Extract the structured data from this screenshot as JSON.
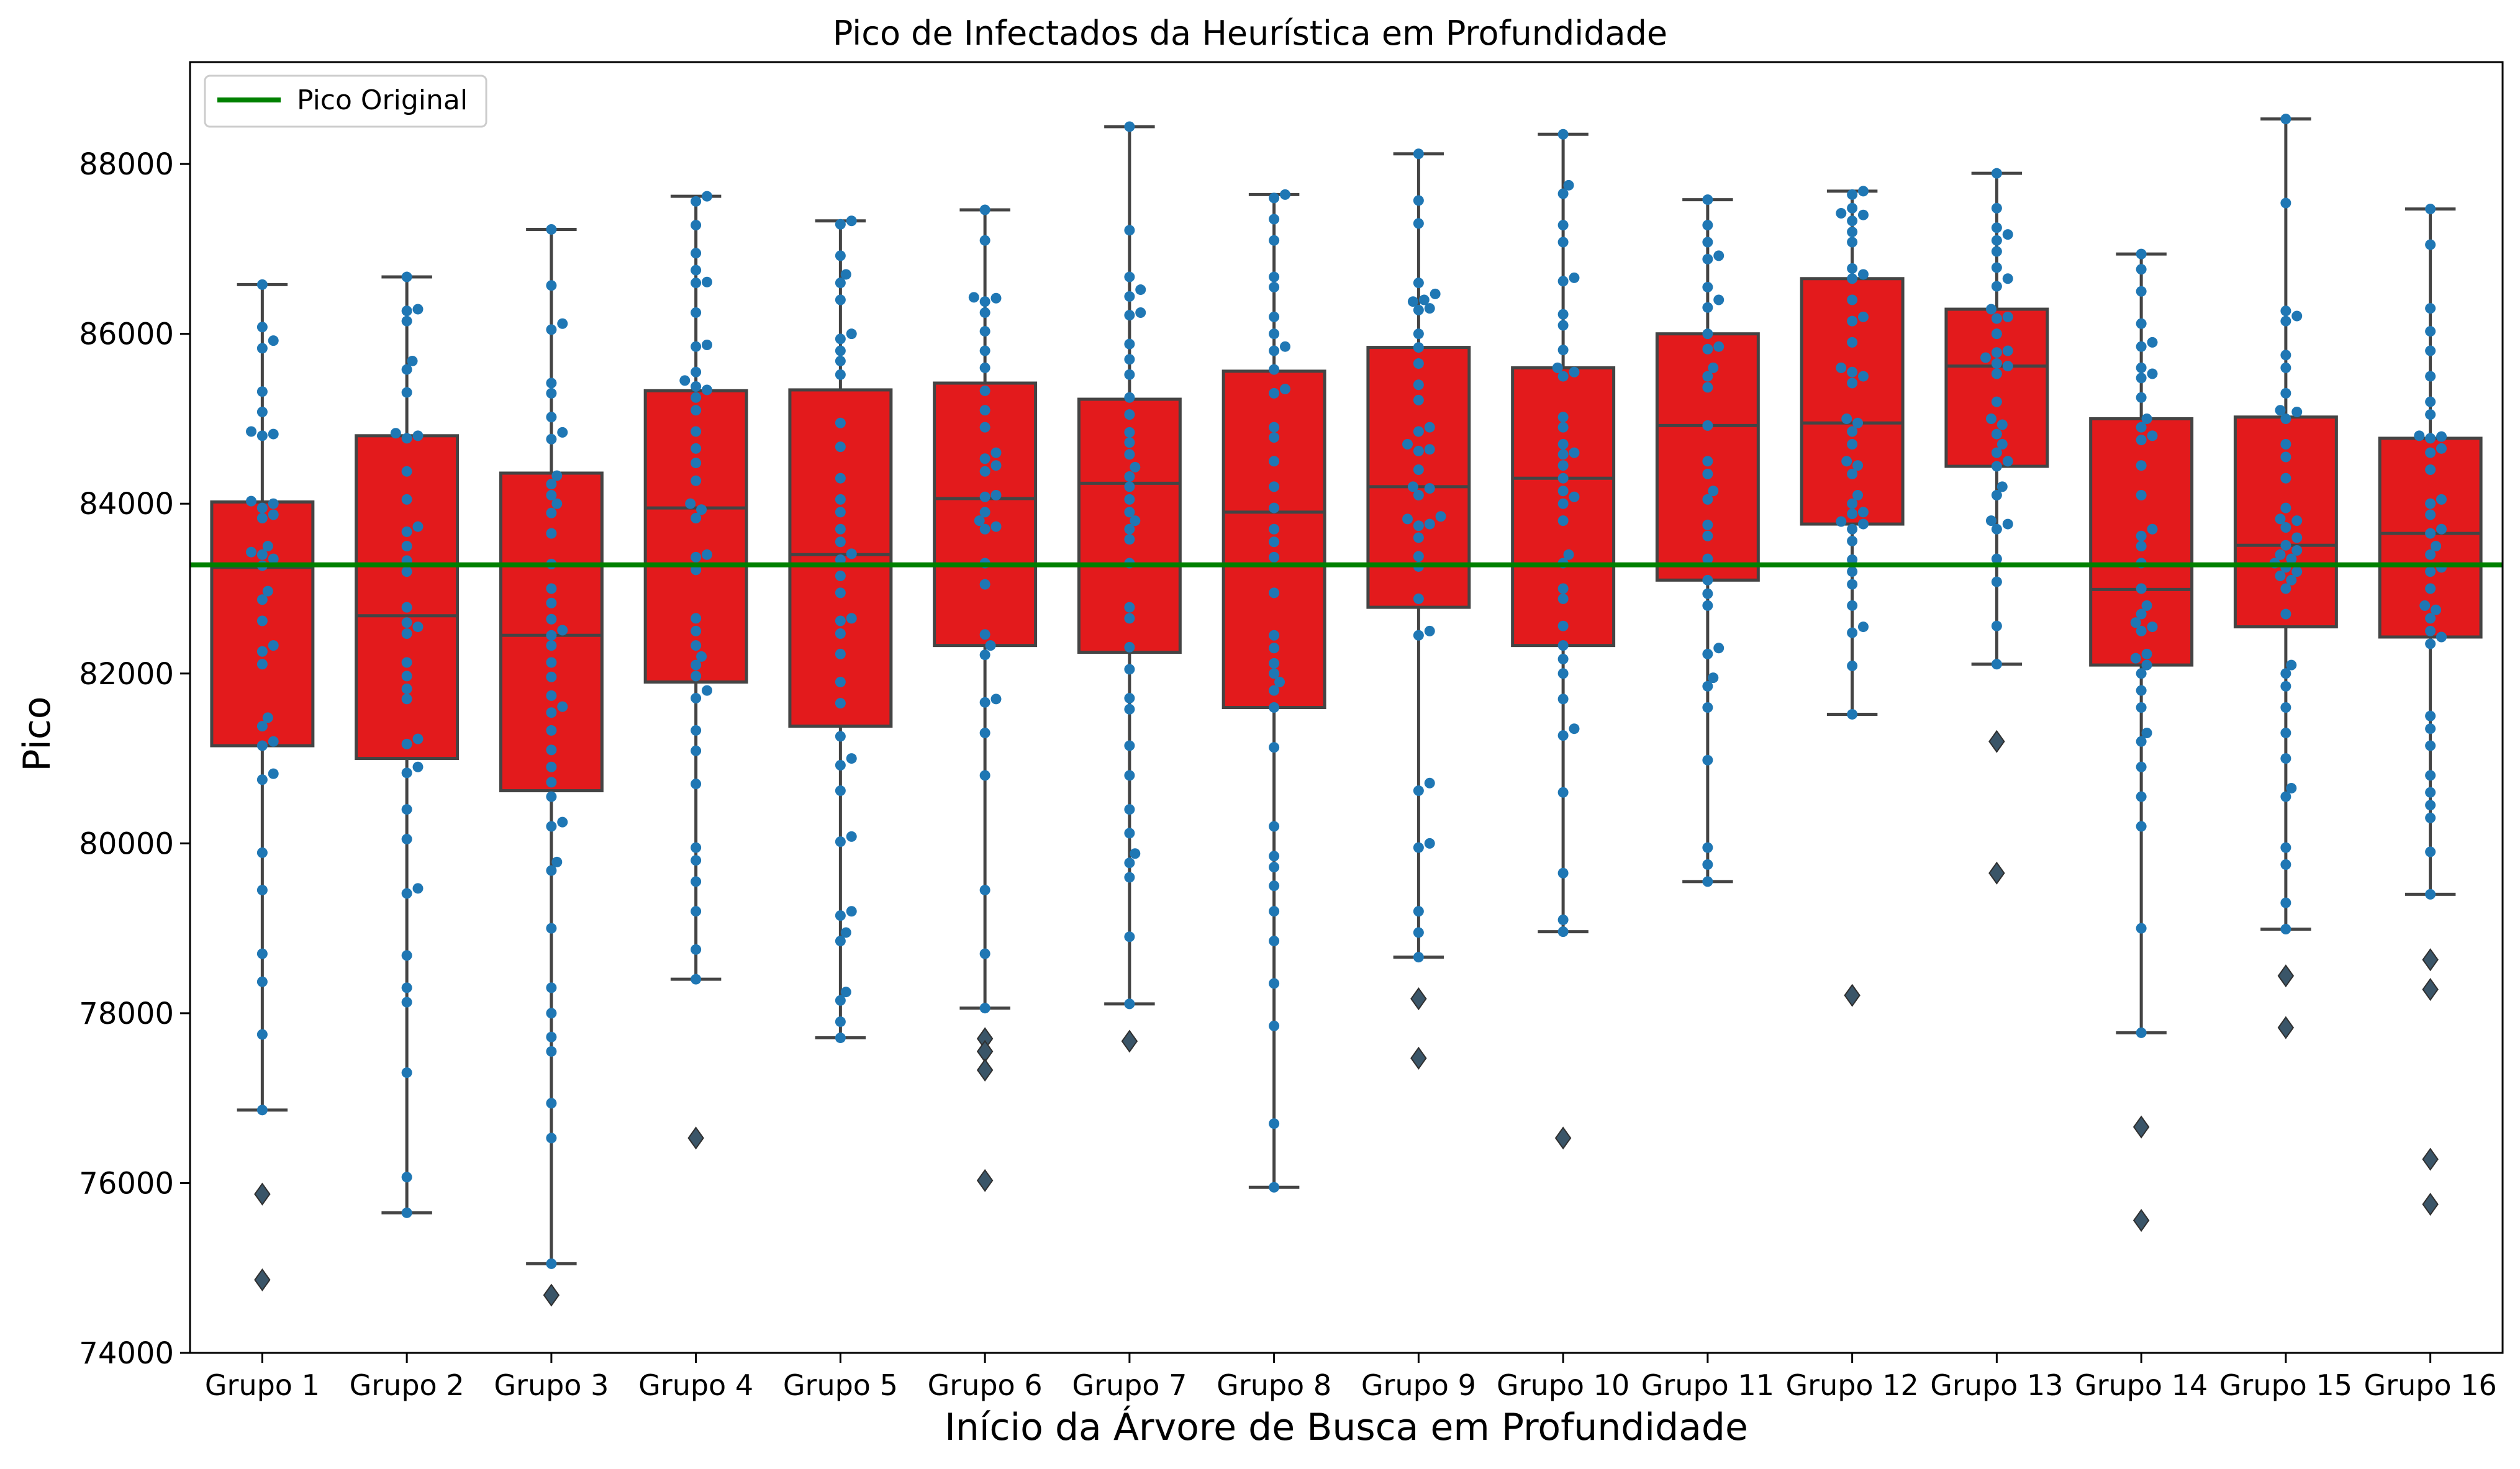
{
  "chart_data": {
    "type": "box",
    "title": "Pico de Infectados da Heurística em Profundidade",
    "xlabel": "Início da Árvore de Busca em Profundidade",
    "ylabel": "Pico",
    "ylim": [
      74000,
      89200
    ],
    "yticks": [
      "74000",
      "76000",
      "78000",
      "80000",
      "82000",
      "84000",
      "86000",
      "88000"
    ],
    "ytick_values": [
      74000,
      76000,
      78000,
      80000,
      82000,
      84000,
      86000,
      88000
    ],
    "grid": false,
    "legend": {
      "placement": "top-left",
      "entries": [
        {
          "label": "Pico Original",
          "color": "#008000"
        }
      ]
    },
    "reference_line": {
      "name": "Pico Original",
      "value": 83280,
      "color": "#008000"
    },
    "box_color": "#e31a1c",
    "point_color": "#1f77b4",
    "edge_color": "#444444",
    "categories": [
      "Grupo 1",
      "Grupo 2",
      "Grupo 3",
      "Grupo 4",
      "Grupo 5",
      "Grupo 6",
      "Grupo 7",
      "Grupo 8",
      "Grupo 9",
      "Grupo 10",
      "Grupo 11",
      "Grupo 12",
      "Grupo 13",
      "Grupo 14",
      "Grupo 15",
      "Grupo 16"
    ],
    "boxes": [
      {
        "category": "Grupo 1",
        "whislo": 76860,
        "q1": 81150,
        "median": 83250,
        "q3": 84020,
        "whishi": 86580,
        "outliers": [
          75870,
          74860
        ]
      },
      {
        "category": "Grupo 2",
        "whislo": 75650,
        "q1": 81000,
        "median": 82680,
        "q3": 84800,
        "whishi": 86670,
        "outliers": []
      },
      {
        "category": "Grupo 3",
        "whislo": 75050,
        "q1": 80620,
        "median": 82450,
        "q3": 84360,
        "whishi": 87230,
        "outliers": [
          74680
        ]
      },
      {
        "category": "Grupo 4",
        "whislo": 78400,
        "q1": 81900,
        "median": 83950,
        "q3": 85330,
        "whishi": 87620,
        "outliers": [
          76530
        ]
      },
      {
        "category": "Grupo 5",
        "whislo": 77710,
        "q1": 81380,
        "median": 83400,
        "q3": 85340,
        "whishi": 87330,
        "outliers": []
      },
      {
        "category": "Grupo 6",
        "whislo": 78060,
        "q1": 82330,
        "median": 84060,
        "q3": 85420,
        "whishi": 87460,
        "outliers": [
          77700,
          77550,
          77330,
          76030
        ]
      },
      {
        "category": "Grupo 7",
        "whislo": 78110,
        "q1": 82250,
        "median": 84240,
        "q3": 85230,
        "whishi": 88440,
        "outliers": [
          77670
        ]
      },
      {
        "category": "Grupo 8",
        "whislo": 75950,
        "q1": 81600,
        "median": 83900,
        "q3": 85560,
        "whishi": 87640,
        "outliers": []
      },
      {
        "category": "Grupo 9",
        "whislo": 78660,
        "q1": 82780,
        "median": 84200,
        "q3": 85840,
        "whishi": 88120,
        "outliers": [
          78170,
          77470
        ]
      },
      {
        "category": "Grupo 10",
        "whislo": 78960,
        "q1": 82330,
        "median": 84300,
        "q3": 85600,
        "whishi": 88350,
        "outliers": [
          76530
        ]
      },
      {
        "category": "Grupo 11",
        "whislo": 79550,
        "q1": 83100,
        "median": 84920,
        "q3": 86000,
        "whishi": 87580,
        "outliers": []
      },
      {
        "category": "Grupo 12",
        "whislo": 81520,
        "q1": 83760,
        "median": 84950,
        "q3": 86650,
        "whishi": 87680,
        "outliers": [
          78210
        ]
      },
      {
        "category": "Grupo 13",
        "whislo": 82110,
        "q1": 84440,
        "median": 85620,
        "q3": 86290,
        "whishi": 87890,
        "outliers": [
          81200,
          79650
        ]
      },
      {
        "category": "Grupo 14",
        "whislo": 77770,
        "q1": 82100,
        "median": 82990,
        "q3": 85000,
        "whishi": 86940,
        "outliers": [
          76660,
          75560
        ]
      },
      {
        "category": "Grupo 15",
        "whislo": 78990,
        "q1": 82550,
        "median": 83510,
        "q3": 85020,
        "whishi": 88530,
        "outliers": [
          78440,
          77830
        ]
      },
      {
        "category": "Grupo 16",
        "whislo": 79400,
        "q1": 82430,
        "median": 83650,
        "q3": 84770,
        "whishi": 87470,
        "outliers": [
          78630,
          78280,
          76280,
          75750
        ]
      }
    ],
    "points": [
      [
        86580,
        86080,
        85920,
        85830,
        85320,
        85080,
        84850,
        84820,
        84800,
        84030,
        84000,
        83950,
        83870,
        83830,
        83500,
        83430,
        83400,
        83350,
        83270,
        82970,
        82870,
        82620,
        82330,
        82260,
        82110,
        81480,
        81380,
        81200,
        81150,
        80820,
        80750,
        79890,
        79450,
        78700,
        78370,
        77750,
        76860
      ],
      [
        86670,
        86290,
        86270,
        86150,
        85680,
        85580,
        85310,
        84830,
        84800,
        84770,
        84380,
        84050,
        83730,
        83670,
        83500,
        83330,
        83200,
        82780,
        82600,
        82550,
        82470,
        82130,
        81970,
        81820,
        81700,
        81230,
        81170,
        80900,
        80830,
        80400,
        80050,
        79470,
        79410,
        78680,
        78300,
        78130,
        77300,
        76070,
        75650
      ],
      [
        87230,
        86570,
        86120,
        86050,
        85420,
        85300,
        85020,
        84840,
        84760,
        84330,
        84230,
        84100,
        84000,
        83890,
        83650,
        83290,
        83000,
        82830,
        82640,
        82510,
        82450,
        82330,
        82130,
        81960,
        81740,
        81610,
        81540,
        81330,
        81100,
        80900,
        80720,
        80550,
        80250,
        80200,
        79780,
        79680,
        79000,
        78300,
        78000,
        77720,
        77550,
        76940,
        76530,
        75050
      ],
      [
        87620,
        87560,
        87280,
        86950,
        86750,
        86610,
        86600,
        86250,
        85870,
        85850,
        85550,
        85450,
        85380,
        85340,
        85250,
        85100,
        84850,
        84650,
        84480,
        84270,
        84000,
        83930,
        83830,
        83400,
        83370,
        83220,
        82650,
        82500,
        82330,
        82200,
        82100,
        81970,
        81800,
        81710,
        81330,
        81090,
        80700,
        79950,
        79800,
        79550,
        79200,
        78750,
        78400
      ],
      [
        87330,
        87290,
        86920,
        86700,
        86600,
        86400,
        86000,
        85940,
        85800,
        85680,
        85520,
        84950,
        84670,
        84300,
        84050,
        83900,
        83700,
        83550,
        83410,
        83340,
        83150,
        82950,
        82650,
        82620,
        82470,
        82230,
        81900,
        81650,
        81260,
        81000,
        80920,
        80620,
        80080,
        80020,
        79200,
        79150,
        78950,
        78850,
        78250,
        78150,
        77900,
        77710
      ],
      [
        87460,
        87100,
        86430,
        86420,
        86380,
        86250,
        86030,
        85800,
        85600,
        85330,
        85100,
        84900,
        84600,
        84530,
        84450,
        84380,
        84100,
        84080,
        83900,
        83800,
        83730,
        83700,
        83300,
        83050,
        82460,
        82330,
        82220,
        81700,
        81660,
        81300,
        80800,
        79450,
        78700,
        78060
      ],
      [
        88440,
        87220,
        86670,
        86520,
        86440,
        86250,
        86220,
        85880,
        85700,
        85520,
        85250,
        85050,
        84840,
        84720,
        84580,
        84430,
        84320,
        84200,
        84050,
        83900,
        83800,
        83700,
        83580,
        83300,
        82780,
        82650,
        82310,
        82050,
        81710,
        81580,
        81150,
        80800,
        80400,
        80120,
        79880,
        79770,
        79600,
        78900,
        78110
      ],
      [
        87640,
        87600,
        87350,
        87100,
        86670,
        86550,
        86200,
        86000,
        85850,
        85800,
        85580,
        85350,
        85300,
        84900,
        84780,
        84500,
        84200,
        83950,
        83700,
        83550,
        83370,
        82950,
        82450,
        82300,
        82120,
        82000,
        81900,
        81800,
        81600,
        81130,
        80200,
        79850,
        79720,
        79500,
        79200,
        78850,
        78350,
        77850,
        76700,
        75950
      ],
      [
        88120,
        87570,
        87300,
        86600,
        86470,
        86400,
        86380,
        86300,
        86280,
        86000,
        85840,
        85650,
        85400,
        85220,
        84900,
        84850,
        84700,
        84640,
        84620,
        84400,
        84200,
        84180,
        84100,
        83850,
        83820,
        83760,
        83740,
        83600,
        83380,
        83260,
        82880,
        82500,
        82450,
        80710,
        80620,
        80000,
        79950,
        79200,
        78950,
        78660
      ],
      [
        88350,
        87750,
        87650,
        87280,
        87080,
        86660,
        86620,
        86230,
        86100,
        85810,
        85600,
        85550,
        85500,
        85020,
        84900,
        84700,
        84600,
        84580,
        84450,
        84300,
        84150,
        84080,
        84000,
        83800,
        83400,
        83300,
        83000,
        82880,
        82560,
        82330,
        82170,
        82000,
        81700,
        81350,
        81270,
        80600,
        79650,
        79100,
        78960
      ],
      [
        87580,
        87280,
        87080,
        86920,
        86880,
        86550,
        86400,
        86310,
        86000,
        85850,
        85820,
        85600,
        85500,
        85370,
        84920,
        84500,
        84350,
        84150,
        84050,
        83750,
        83620,
        83350,
        83100,
        82940,
        82800,
        82300,
        82230,
        81950,
        81850,
        81600,
        80980,
        79950,
        79750,
        79550
      ],
      [
        87680,
        87640,
        87480,
        87420,
        87400,
        87330,
        87200,
        87080,
        86770,
        86700,
        86650,
        86400,
        86200,
        86150,
        85900,
        85600,
        85550,
        85500,
        85420,
        85000,
        84950,
        84850,
        84700,
        84500,
        84450,
        84350,
        84100,
        84000,
        83900,
        83880,
        83790,
        83760,
        83700,
        83560,
        83340,
        83200,
        83050,
        82800,
        82550,
        82480,
        82090,
        81520
      ],
      [
        87890,
        87480,
        87250,
        87170,
        87100,
        86970,
        86780,
        86650,
        86560,
        86290,
        86200,
        86180,
        86000,
        85800,
        85780,
        85720,
        85650,
        85620,
        85530,
        85200,
        85000,
        84930,
        84820,
        84700,
        84600,
        84500,
        84440,
        84200,
        84100,
        83800,
        83760,
        83700,
        83350,
        83080,
        82560,
        82110
      ],
      [
        86940,
        86760,
        86500,
        86120,
        85900,
        85850,
        85600,
        85530,
        85480,
        85250,
        85000,
        84900,
        84800,
        84750,
        84450,
        84100,
        83700,
        83620,
        83500,
        83300,
        83000,
        82800,
        82700,
        82600,
        82550,
        82500,
        82230,
        82180,
        82100,
        82000,
        81800,
        81600,
        81300,
        81200,
        80900,
        80550,
        80200,
        79000,
        77770
      ],
      [
        88530,
        87540,
        86270,
        86210,
        86150,
        85750,
        85600,
        85300,
        85100,
        85080,
        85000,
        84700,
        84550,
        84300,
        83950,
        83820,
        83800,
        83720,
        83600,
        83510,
        83450,
        83400,
        83350,
        83300,
        83250,
        83200,
        83150,
        83100,
        83000,
        82700,
        82100,
        82000,
        81850,
        81600,
        81300,
        81000,
        80650,
        80550,
        79950,
        79750,
        79300,
        78990
      ],
      [
        87470,
        87050,
        86300,
        86030,
        85800,
        85500,
        85200,
        85050,
        84800,
        84790,
        84770,
        84650,
        84600,
        84400,
        84050,
        84000,
        83870,
        83700,
        83650,
        83500,
        83400,
        83250,
        83200,
        83000,
        82800,
        82750,
        82650,
        82500,
        82430,
        82350,
        81500,
        81350,
        81150,
        80800,
        80600,
        80450,
        80300,
        79900,
        79400
      ]
    ]
  }
}
